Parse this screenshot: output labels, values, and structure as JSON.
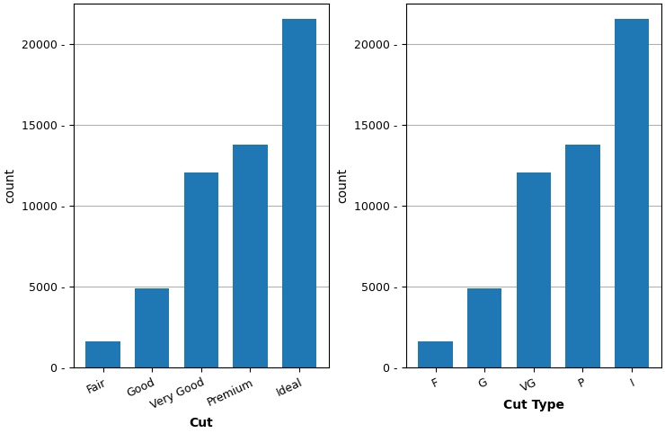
{
  "chart_data": [
    {
      "type": "bar",
      "categories": [
        "Fair",
        "Good",
        "Very Good",
        "Premium",
        "Ideal"
      ],
      "values": [
        1610,
        4906,
        12082,
        13791,
        21551
      ],
      "xlabel": "Cut",
      "ylabel": "count",
      "ylim": [
        0,
        22500
      ],
      "yticks": [
        {
          "value": 0,
          "label": "0 -"
        },
        {
          "value": 5000,
          "label": "5000 -"
        },
        {
          "value": 10000,
          "label": "10000 -"
        },
        {
          "value": 15000,
          "label": "15000 -"
        },
        {
          "value": 20000,
          "label": "20000 -"
        }
      ],
      "grid": true
    },
    {
      "type": "bar",
      "categories": [
        "F",
        "G",
        "VG",
        "P",
        "I"
      ],
      "values": [
        1610,
        4906,
        12082,
        13791,
        21551
      ],
      "xlabel": "Cut Type",
      "ylabel": "count",
      "ylim": [
        0,
        22500
      ],
      "yticks": [
        {
          "value": 0,
          "label": "0 -"
        },
        {
          "value": 5000,
          "label": "5000 -"
        },
        {
          "value": 10000,
          "label": "10000 -"
        },
        {
          "value": 15000,
          "label": "15000 -"
        },
        {
          "value": 20000,
          "label": "20000 -"
        }
      ],
      "grid": true
    }
  ]
}
